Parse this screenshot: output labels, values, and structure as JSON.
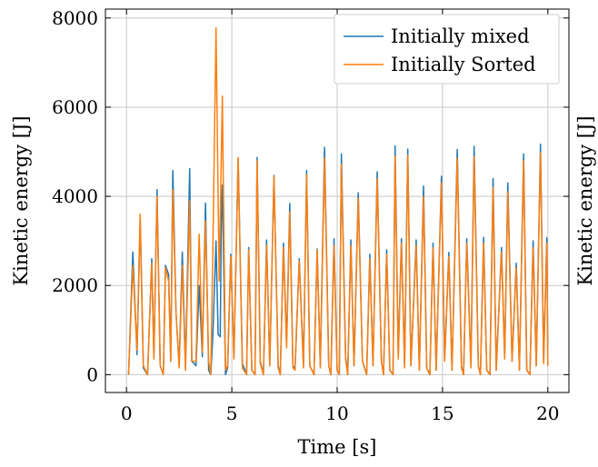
{
  "chart_data": {
    "type": "line",
    "title": "",
    "xlabel": "Time [s]",
    "ylabel": "Kinetic energy [J]",
    "right_ylabel": "Kinetic energy [J]",
    "xlim": [
      -1,
      21
    ],
    "ylim": [
      -400,
      8200
    ],
    "xticks": [
      0,
      5,
      10,
      15,
      20
    ],
    "yticks": [
      0,
      2000,
      4000,
      6000,
      8000
    ],
    "grid": true,
    "legend_position": "top-right",
    "series": [
      {
        "name": "Initially mixed",
        "color": "#1f77b4",
        "points": [
          [
            0.1,
            0
          ],
          [
            0.3,
            2750
          ],
          [
            0.5,
            450
          ],
          [
            0.65,
            3500
          ],
          [
            0.8,
            150
          ],
          [
            1.0,
            0
          ],
          [
            1.2,
            2600
          ],
          [
            1.3,
            400
          ],
          [
            1.45,
            4150
          ],
          [
            1.6,
            200
          ],
          [
            1.75,
            0
          ],
          [
            1.85,
            2450
          ],
          [
            2.0,
            2250
          ],
          [
            2.1,
            300
          ],
          [
            2.2,
            4580
          ],
          [
            2.35,
            1400
          ],
          [
            2.5,
            200
          ],
          [
            2.65,
            2750
          ],
          [
            2.8,
            150
          ],
          [
            3.0,
            4620
          ],
          [
            3.1,
            300
          ],
          [
            3.3,
            200
          ],
          [
            3.45,
            2000
          ],
          [
            3.6,
            400
          ],
          [
            3.75,
            3850
          ],
          [
            3.9,
            100
          ],
          [
            4.0,
            0
          ],
          [
            4.1,
            900
          ],
          [
            4.25,
            3000
          ],
          [
            4.35,
            900
          ],
          [
            4.45,
            850
          ],
          [
            4.5,
            3400
          ],
          [
            4.55,
            4250
          ],
          [
            4.7,
            0
          ],
          [
            4.8,
            150
          ],
          [
            4.95,
            2700
          ],
          [
            5.1,
            400
          ],
          [
            5.3,
            4850
          ],
          [
            5.5,
            250
          ],
          [
            5.7,
            0
          ],
          [
            5.8,
            2850
          ],
          [
            5.95,
            100
          ],
          [
            6.1,
            0
          ],
          [
            6.2,
            4870
          ],
          [
            6.35,
            300
          ],
          [
            6.5,
            0
          ],
          [
            6.65,
            3020
          ],
          [
            6.8,
            200
          ],
          [
            7.0,
            4470
          ],
          [
            7.2,
            200
          ],
          [
            7.3,
            0
          ],
          [
            7.45,
            2950
          ],
          [
            7.6,
            700
          ],
          [
            7.75,
            3840
          ],
          [
            7.9,
            200
          ],
          [
            8.0,
            150
          ],
          [
            8.2,
            2600
          ],
          [
            8.4,
            200
          ],
          [
            8.55,
            4580
          ],
          [
            8.7,
            200
          ],
          [
            8.9,
            0
          ],
          [
            9.05,
            2820
          ],
          [
            9.2,
            200
          ],
          [
            9.4,
            5100
          ],
          [
            9.6,
            200
          ],
          [
            9.7,
            0
          ],
          [
            9.85,
            3050
          ],
          [
            10.0,
            100
          ],
          [
            10.1,
            0
          ],
          [
            10.2,
            4950
          ],
          [
            10.4,
            400
          ],
          [
            10.5,
            0
          ],
          [
            10.65,
            3020
          ],
          [
            10.8,
            200
          ],
          [
            11.0,
            4080
          ],
          [
            11.2,
            300
          ],
          [
            11.4,
            0
          ],
          [
            11.55,
            2700
          ],
          [
            11.7,
            200
          ],
          [
            11.9,
            4550
          ],
          [
            12.1,
            300
          ],
          [
            12.2,
            0
          ],
          [
            12.35,
            2800
          ],
          [
            12.5,
            100
          ],
          [
            12.65,
            0
          ],
          [
            12.75,
            5130
          ],
          [
            12.9,
            400
          ],
          [
            13.05,
            3050
          ],
          [
            13.2,
            200
          ],
          [
            13.35,
            5060
          ],
          [
            13.5,
            200
          ],
          [
            13.75,
            3020
          ],
          [
            13.9,
            100
          ],
          [
            14.1,
            4230
          ],
          [
            14.25,
            150
          ],
          [
            14.4,
            0
          ],
          [
            14.55,
            2950
          ],
          [
            14.7,
            100
          ],
          [
            14.95,
            4450
          ],
          [
            15.1,
            300
          ],
          [
            15.3,
            2740
          ],
          [
            15.45,
            100
          ],
          [
            15.7,
            5050
          ],
          [
            15.9,
            200
          ],
          [
            16.0,
            0
          ],
          [
            16.15,
            3050
          ],
          [
            16.35,
            200
          ],
          [
            16.5,
            5120
          ],
          [
            16.7,
            200
          ],
          [
            16.8,
            0
          ],
          [
            16.95,
            3080
          ],
          [
            17.1,
            100
          ],
          [
            17.25,
            0
          ],
          [
            17.4,
            4400
          ],
          [
            17.55,
            100
          ],
          [
            17.8,
            2850
          ],
          [
            17.95,
            400
          ],
          [
            18.1,
            4300
          ],
          [
            18.3,
            300
          ],
          [
            18.5,
            2500
          ],
          [
            18.65,
            100
          ],
          [
            18.85,
            4950
          ],
          [
            19.0,
            100
          ],
          [
            19.15,
            0
          ],
          [
            19.3,
            3000
          ],
          [
            19.45,
            200
          ],
          [
            19.65,
            5170
          ],
          [
            19.8,
            300
          ],
          [
            19.95,
            3070
          ],
          [
            20.0,
            200
          ]
        ]
      },
      {
        "name": "Initially Sorted",
        "color": "#ff7f0e",
        "points": [
          [
            0.1,
            0
          ],
          [
            0.3,
            2450
          ],
          [
            0.5,
            550
          ],
          [
            0.65,
            3600
          ],
          [
            0.8,
            200
          ],
          [
            1.0,
            0
          ],
          [
            1.2,
            2500
          ],
          [
            1.3,
            350
          ],
          [
            1.45,
            4000
          ],
          [
            1.6,
            200
          ],
          [
            1.75,
            0
          ],
          [
            1.85,
            2400
          ],
          [
            2.0,
            2100
          ],
          [
            2.1,
            300
          ],
          [
            2.2,
            4150
          ],
          [
            2.35,
            1400
          ],
          [
            2.5,
            150
          ],
          [
            2.65,
            2450
          ],
          [
            2.8,
            100
          ],
          [
            3.0,
            3900
          ],
          [
            3.1,
            300
          ],
          [
            3.3,
            300
          ],
          [
            3.45,
            3150
          ],
          [
            3.6,
            500
          ],
          [
            3.75,
            3450
          ],
          [
            3.9,
            300
          ],
          [
            4.0,
            0
          ],
          [
            4.1,
            2800
          ],
          [
            4.25,
            7780
          ],
          [
            4.4,
            2100
          ],
          [
            4.55,
            6250
          ],
          [
            4.7,
            100
          ],
          [
            4.8,
            200
          ],
          [
            4.95,
            2650
          ],
          [
            5.1,
            350
          ],
          [
            5.3,
            4870
          ],
          [
            5.5,
            150
          ],
          [
            5.7,
            0
          ],
          [
            5.8,
            2800
          ],
          [
            5.95,
            100
          ],
          [
            6.1,
            0
          ],
          [
            6.2,
            4800
          ],
          [
            6.35,
            250
          ],
          [
            6.5,
            0
          ],
          [
            6.65,
            2900
          ],
          [
            6.8,
            200
          ],
          [
            7.0,
            4450
          ],
          [
            7.2,
            150
          ],
          [
            7.3,
            0
          ],
          [
            7.45,
            2850
          ],
          [
            7.6,
            600
          ],
          [
            7.75,
            3650
          ],
          [
            7.9,
            150
          ],
          [
            8.0,
            100
          ],
          [
            8.2,
            2550
          ],
          [
            8.4,
            150
          ],
          [
            8.55,
            4480
          ],
          [
            8.7,
            200
          ],
          [
            8.9,
            0
          ],
          [
            9.05,
            2800
          ],
          [
            9.2,
            150
          ],
          [
            9.4,
            4860
          ],
          [
            9.6,
            200
          ],
          [
            9.7,
            0
          ],
          [
            9.85,
            2900
          ],
          [
            10.0,
            100
          ],
          [
            10.1,
            0
          ],
          [
            10.2,
            4720
          ],
          [
            10.4,
            350
          ],
          [
            10.5,
            0
          ],
          [
            10.65,
            2900
          ],
          [
            10.8,
            200
          ],
          [
            11.0,
            3950
          ],
          [
            11.2,
            300
          ],
          [
            11.4,
            0
          ],
          [
            11.55,
            2600
          ],
          [
            11.7,
            200
          ],
          [
            11.9,
            4400
          ],
          [
            12.1,
            300
          ],
          [
            12.2,
            0
          ],
          [
            12.35,
            2700
          ],
          [
            12.5,
            100
          ],
          [
            12.65,
            0
          ],
          [
            12.75,
            4900
          ],
          [
            12.9,
            350
          ],
          [
            13.05,
            2950
          ],
          [
            13.2,
            150
          ],
          [
            13.35,
            4920
          ],
          [
            13.5,
            200
          ],
          [
            13.75,
            2900
          ],
          [
            13.9,
            100
          ],
          [
            14.1,
            4000
          ],
          [
            14.25,
            150
          ],
          [
            14.4,
            0
          ],
          [
            14.55,
            2850
          ],
          [
            14.7,
            100
          ],
          [
            14.95,
            4300
          ],
          [
            15.1,
            300
          ],
          [
            15.3,
            2650
          ],
          [
            15.45,
            100
          ],
          [
            15.7,
            4850
          ],
          [
            15.9,
            150
          ],
          [
            16.0,
            0
          ],
          [
            16.15,
            2950
          ],
          [
            16.35,
            150
          ],
          [
            16.5,
            4900
          ],
          [
            16.7,
            200
          ],
          [
            16.8,
            0
          ],
          [
            16.95,
            2950
          ],
          [
            17.1,
            100
          ],
          [
            17.25,
            0
          ],
          [
            17.4,
            4200
          ],
          [
            17.55,
            100
          ],
          [
            17.8,
            2750
          ],
          [
            17.95,
            350
          ],
          [
            18.1,
            4100
          ],
          [
            18.3,
            300
          ],
          [
            18.5,
            2400
          ],
          [
            18.65,
            100
          ],
          [
            18.85,
            4800
          ],
          [
            19.0,
            100
          ],
          [
            19.15,
            0
          ],
          [
            19.3,
            2850
          ],
          [
            19.45,
            200
          ],
          [
            19.65,
            4980
          ],
          [
            19.8,
            250
          ],
          [
            19.95,
            2950
          ],
          [
            20.0,
            200
          ]
        ]
      }
    ]
  }
}
